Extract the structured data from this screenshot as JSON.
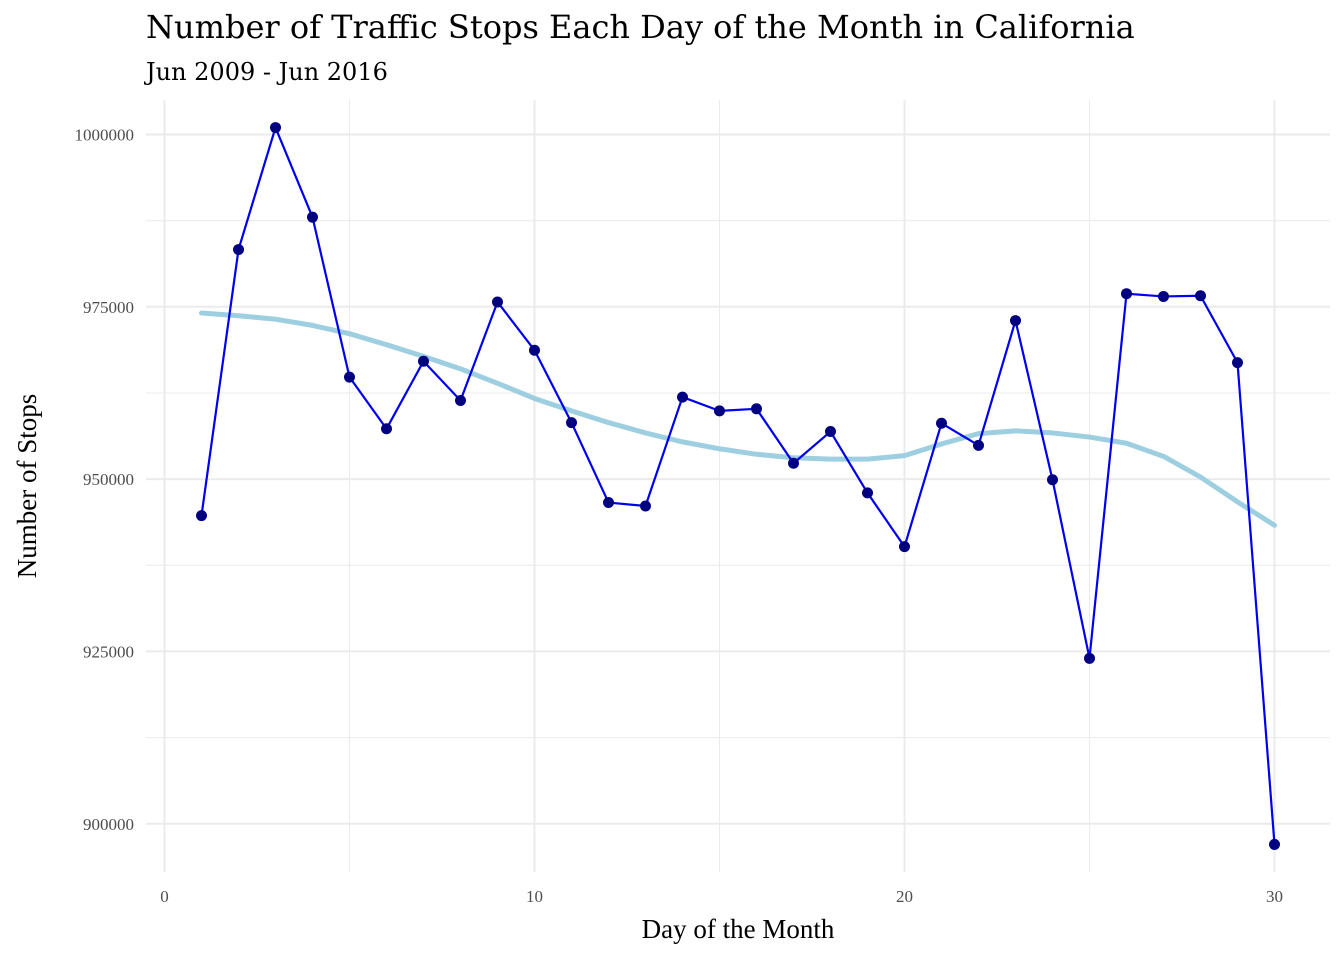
{
  "chart_data": {
    "type": "line",
    "title": "Number of Traffic Stops Each Day of the Month in California",
    "subtitle": "Jun 2009 - Jun 2016",
    "xlabel": "Day of the Month",
    "ylabel": "Number of Stops",
    "xlim": [
      -0.5,
      31.5
    ],
    "ylim": [
      893000,
      1005000
    ],
    "x_ticks": [
      0,
      10,
      20,
      30
    ],
    "y_ticks": [
      900000,
      925000,
      950000,
      975000,
      1000000
    ],
    "grid": true,
    "legend": "none",
    "series": [
      {
        "style": "line+points",
        "line_color": "#0000ee",
        "point_color": "#000080",
        "x": [
          1,
          2,
          3,
          4,
          5,
          6,
          7,
          8,
          9,
          10,
          11,
          12,
          13,
          14,
          15,
          16,
          17,
          18,
          19,
          20,
          21,
          22,
          23,
          24,
          25,
          26,
          27,
          28,
          29,
          30
        ],
        "values": [
          944700,
          983300,
          1001000,
          988000,
          964800,
          957300,
          967100,
          961400,
          975700,
          968700,
          958200,
          946600,
          946100,
          961900,
          959900,
          960200,
          952300,
          956900,
          948000,
          940200,
          958100,
          954900,
          973000,
          949900,
          924000,
          976900,
          976500,
          976600,
          966900,
          897000
        ]
      },
      {
        "style": "smooth",
        "line_color": "#9ecfe0",
        "x": [
          1,
          2,
          3,
          4,
          5,
          6,
          7,
          8,
          9,
          10,
          11,
          12,
          13,
          14,
          15,
          16,
          17,
          18,
          19,
          20,
          21,
          22,
          23,
          24,
          25,
          26,
          27,
          28,
          29,
          30
        ],
        "values": [
          974100,
          973700,
          973200,
          972300,
          971100,
          969500,
          967800,
          966000,
          963900,
          961700,
          959900,
          958200,
          956700,
          955400,
          954400,
          953600,
          953100,
          952900,
          952900,
          953400,
          955100,
          956600,
          957000,
          956700,
          956100,
          955200,
          953300,
          950300,
          946700,
          943300
        ]
      }
    ]
  }
}
